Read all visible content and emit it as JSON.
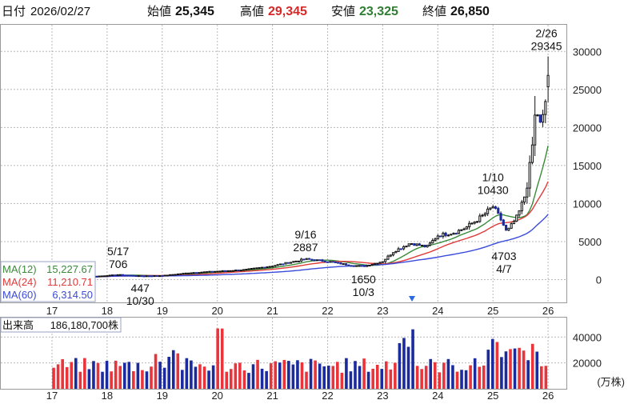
{
  "header": {
    "date_label": "日付",
    "date_value": "2026/02/27",
    "open_label": "始値",
    "open_value": "25,345",
    "high_label": "高値",
    "high_value": "29,345",
    "low_label": "安値",
    "low_value": "23,325",
    "close_label": "終値",
    "close_value": "26,850"
  },
  "colors": {
    "up": "#e8343a",
    "down": "#1b2a9c",
    "ma12": "#3a8a3a",
    "ma24": "#e03a3a",
    "ma60": "#3a4adb",
    "high_value": "#d62828",
    "low_value": "#2e7d32",
    "grid": "#b8b8b8"
  },
  "chart_data": [
    {
      "type": "candlestick",
      "y_ticks": [
        "30000",
        "25000",
        "20000",
        "15000",
        "10000",
        "5000",
        "0"
      ],
      "x_ticks": [
        "17",
        "18",
        "19",
        "20",
        "21",
        "22",
        "23",
        "24",
        "25",
        "26"
      ],
      "ylim": [
        -3000,
        33500
      ],
      "ma_legend": [
        {
          "label": "MA(12)",
          "value": "15,227.67",
          "series": "ma12"
        },
        {
          "label": "MA(24)",
          "value": "11,210.71",
          "series": "ma24"
        },
        {
          "label": "MA(60)",
          "value": "6,314.50",
          "series": "ma60"
        }
      ],
      "annotations": [
        {
          "date": "5/17",
          "value": "706",
          "x_month": 1.2,
          "price": 706,
          "pos": "above"
        },
        {
          "date": "10/30",
          "value": "447",
          "x_month": 1.6,
          "price": 447,
          "pos": "below"
        },
        {
          "date": "9/16",
          "value": "2887",
          "x_month": 4.6,
          "price": 2887,
          "pos": "above"
        },
        {
          "date": "10/3",
          "value": "1650",
          "x_month": 5.65,
          "price": 1650,
          "pos": "below"
        },
        {
          "date": "1/10",
          "value": "10430",
          "x_month": 8.0,
          "price": 10430,
          "pos": "above"
        },
        {
          "date": "4/7",
          "value": "4703",
          "x_month": 8.2,
          "price": 4703,
          "pos": "below"
        },
        {
          "date": "2/26",
          "value": "29345",
          "x_month": 8.97,
          "price": 29345,
          "pos": "above"
        }
      ],
      "anchors": [
        [
          0,
          400
        ],
        [
          0.8,
          420
        ],
        [
          1.2,
          650
        ],
        [
          1.6,
          480
        ],
        [
          2.0,
          520
        ],
        [
          2.5,
          900
        ],
        [
          3.0,
          1100
        ],
        [
          3.5,
          1300
        ],
        [
          4.0,
          1800
        ],
        [
          4.6,
          2700
        ],
        [
          5.0,
          2400
        ],
        [
          5.4,
          1900
        ],
        [
          5.65,
          1750
        ],
        [
          6.0,
          2400
        ],
        [
          6.2,
          3700
        ],
        [
          6.5,
          4800
        ],
        [
          6.8,
          4300
        ],
        [
          7.0,
          5800
        ],
        [
          7.3,
          6200
        ],
        [
          7.5,
          6800
        ],
        [
          7.8,
          8300
        ],
        [
          8.0,
          9600
        ],
        [
          8.15,
          7800
        ],
        [
          8.25,
          6200
        ],
        [
          8.45,
          8400
        ],
        [
          8.6,
          11500
        ],
        [
          8.7,
          16500
        ],
        [
          8.78,
          22800
        ],
        [
          8.86,
          20200
        ],
        [
          8.93,
          21800
        ],
        [
          9.0,
          26850
        ]
      ]
    },
    {
      "type": "bar",
      "title": "出来高",
      "title_value": "186,180,700株",
      "unit": "(万株)",
      "y_ticks": [
        "40000",
        "20000"
      ],
      "ylim": [
        0,
        55000
      ],
      "x_ticks": [
        "17",
        "18",
        "19",
        "20",
        "21",
        "22",
        "23",
        "24",
        "25",
        "26"
      ]
    }
  ]
}
